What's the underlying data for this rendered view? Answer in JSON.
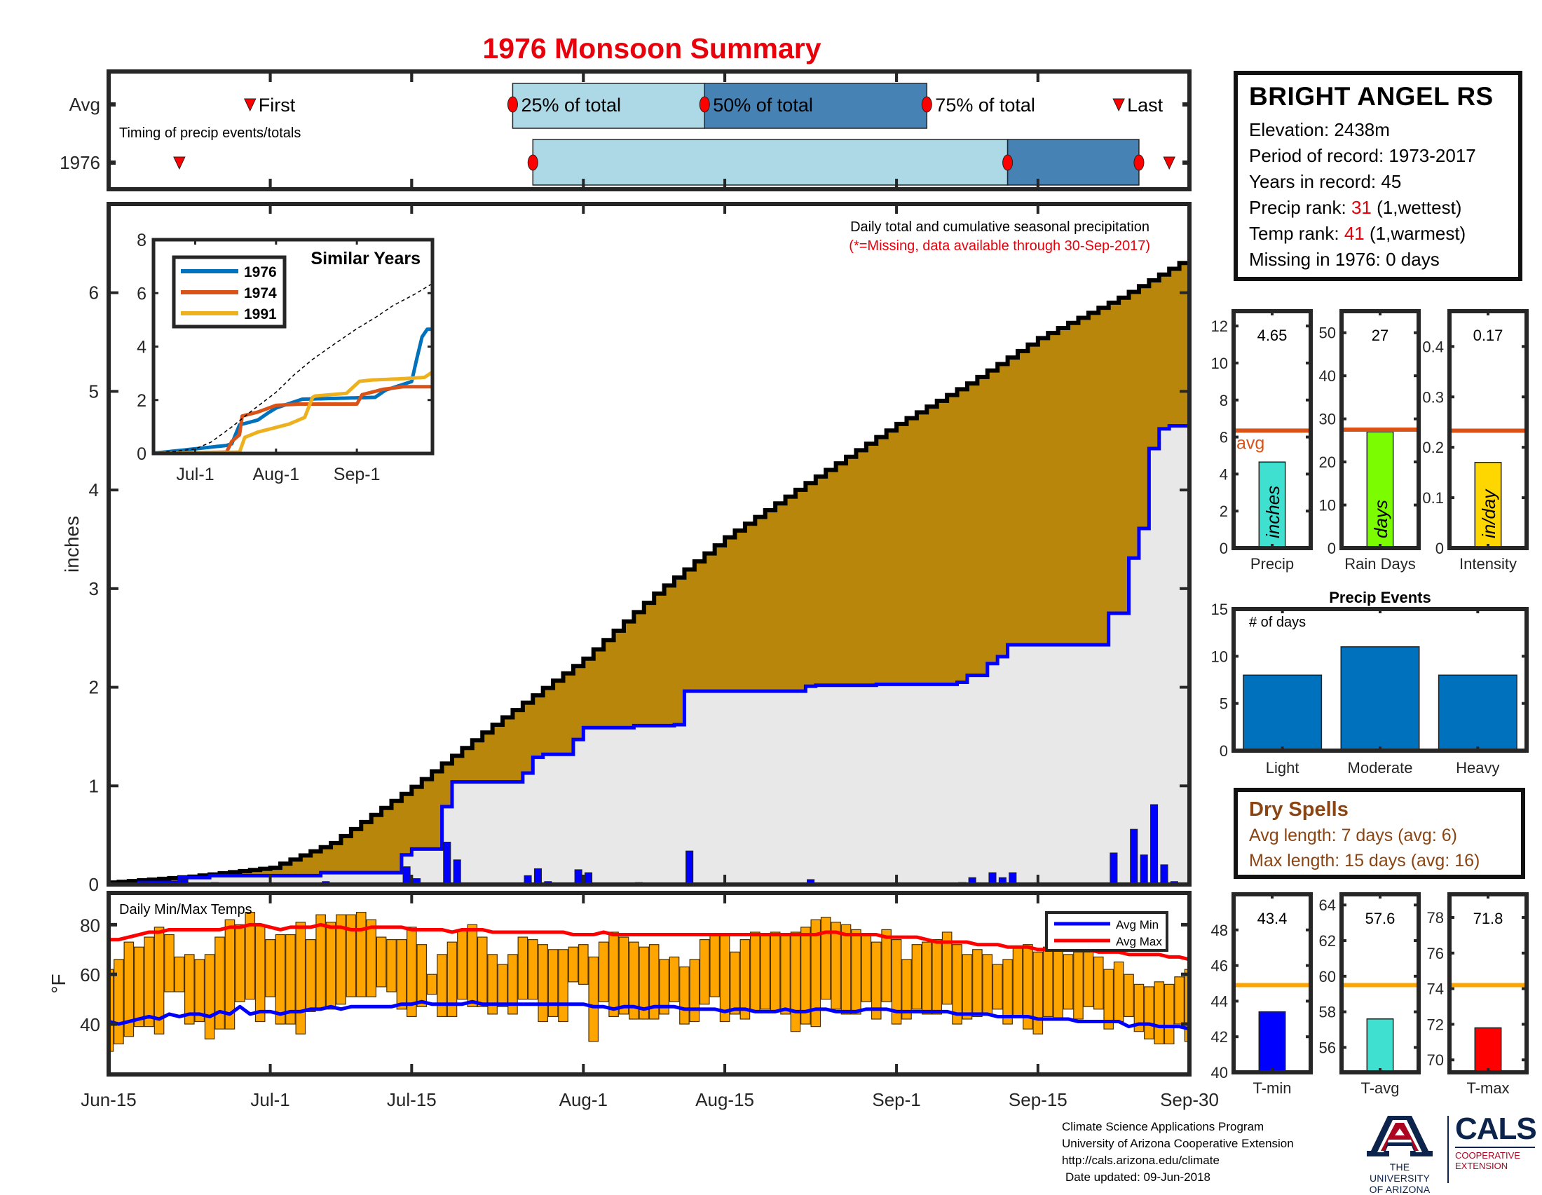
{
  "title": "1976 Monsoon Summary",
  "colors": {
    "title": "#e8000b",
    "avg_cumulative_fill": "#b8860b",
    "year_cumulative_fill": "#e8e8e8",
    "year_line": "#0000ff",
    "daily_bar": "#0000ff",
    "temp_bar": "#ffa500",
    "avg_min_line": "#0000ff",
    "avg_max_line": "#ff0000",
    "light_blue": "#add8e6",
    "steel_blue": "#4682b4",
    "marker": "#ff0000",
    "avg_ref_line_precip": "#d95319",
    "avg_ref_line_temp": "#ffa500",
    "dry_spells": "#8b4513"
  },
  "timing_panel": {
    "row_labels": [
      "Avg",
      "1976"
    ],
    "subtitle": "Timing of precip events/totals",
    "avg_labels": {
      "first": "First",
      "p25": "25% of total",
      "p50": "50% of total",
      "p75": "75% of total",
      "last": "Last"
    },
    "avg_days": {
      "first": 14,
      "p25": 40,
      "p50": 59,
      "p75": 81,
      "last": 100
    },
    "year_days": {
      "first": 7,
      "p25": 42,
      "p50": 89,
      "p75": 102,
      "last": 105
    }
  },
  "station": {
    "name": "BRIGHT ANGEL RS",
    "elevation": "Elevation: 2438m",
    "period": "Period of record: 1973-2017",
    "years": "Years in record: 45",
    "precip_rank_label": "Precip rank: ",
    "precip_rank_value": "31",
    "precip_rank_note": " (1,wettest)",
    "temp_rank_label": "Temp rank: ",
    "temp_rank_value": "41",
    "temp_rank_note": " (1,warmest)",
    "missing": "Missing in 1976: 0 days"
  },
  "dry_spells": {
    "title": "Dry Spells",
    "avg_length": "Avg length: 7 days (avg: 6)",
    "max_length": "Max length: 15 days (avg: 16)"
  },
  "footer": {
    "lines": [
      "Climate Science Applications Program",
      "University of Arizona Cooperative Extension",
      "http://cals.arizona.edu/climate",
      "Date updated: 09-Jun-2018"
    ],
    "logo_ua": [
      "THE UNIVERSITY",
      "OF ARIZONA"
    ],
    "logo_cals": "CALS",
    "logo_cals_sub": [
      "COOPERATIVE",
      "EXTENSION"
    ]
  },
  "x_axis": {
    "start": "Jun-15",
    "days": 107,
    "ticks": [
      {
        "day": 0,
        "label": "Jun-15"
      },
      {
        "day": 16,
        "label": "Jul-1"
      },
      {
        "day": 30,
        "label": "Jul-15"
      },
      {
        "day": 47,
        "label": "Aug-1"
      },
      {
        "day": 61,
        "label": "Aug-15"
      },
      {
        "day": 78,
        "label": "Sep-1"
      },
      {
        "day": 92,
        "label": "Sep-15"
      },
      {
        "day": 107,
        "label": "Sep-30"
      }
    ]
  },
  "chart_data": [
    {
      "id": "main_precip",
      "type": "area",
      "title": "Daily total and cumulative seasonal precipitation",
      "subtitle": "(*=Missing, data available through 30-Sep-2017)",
      "ylabel": "inches",
      "ylim": [
        0,
        6.9
      ],
      "yticks": [
        0,
        1,
        2,
        3,
        4,
        5,
        6
      ],
      "avg_cumulative_keypoints": {
        "day": [
          0,
          8,
          16,
          22,
          30,
          38,
          47,
          54,
          61,
          69,
          78,
          85,
          92,
          100,
          107
        ],
        "value": [
          0.02,
          0.08,
          0.17,
          0.42,
          0.99,
          1.62,
          2.29,
          2.95,
          3.52,
          4.07,
          4.67,
          5.08,
          5.54,
          5.95,
          6.36
        ]
      },
      "daily_precip_1976": {
        "day": [
          3,
          7,
          10,
          21,
          29,
          30,
          33,
          34,
          41,
          42,
          43,
          46,
          47,
          52,
          56,
          57,
          69,
          70,
          76,
          84,
          85,
          87,
          88,
          89,
          99,
          101,
          102,
          103,
          104,
          105
        ],
        "value": [
          0.02,
          0.05,
          0.02,
          0.03,
          0.18,
          0.06,
          0.43,
          0.25,
          0.09,
          0.16,
          0.03,
          0.15,
          0.12,
          0.02,
          0.01,
          0.34,
          0.05,
          0.01,
          0.01,
          0.02,
          0.07,
          0.12,
          0.07,
          0.12,
          0.32,
          0.56,
          0.3,
          0.81,
          0.2,
          0.03
        ]
      }
    },
    {
      "id": "similar_years",
      "type": "line",
      "title": "Similar Years",
      "ylim": [
        0,
        8
      ],
      "yticks": [
        0,
        2,
        4,
        6,
        8
      ],
      "xticks": [
        {
          "day": 16,
          "label": "Jul-1"
        },
        {
          "day": 47,
          "label": "Aug-1"
        },
        {
          "day": 78,
          "label": "Sep-1"
        }
      ],
      "series": [
        {
          "name": "1976",
          "color": "#0072bd",
          "day": [
            0,
            5,
            28,
            30,
            33,
            40,
            44,
            47,
            57,
            85,
            89,
            99,
            101,
            103,
            105,
            107
          ],
          "value": [
            0.01,
            0.06,
            0.3,
            0.36,
            1.07,
            1.25,
            1.52,
            1.7,
            2.03,
            2.1,
            2.37,
            2.69,
            3.55,
            4.36,
            4.65,
            4.65
          ]
        },
        {
          "name": "1974",
          "color": "#d95319",
          "day": [
            0,
            28,
            30,
            33,
            34,
            40,
            47,
            56,
            78,
            80,
            84,
            88,
            96,
            107
          ],
          "value": [
            0.0,
            0.05,
            0.45,
            0.7,
            1.4,
            1.55,
            1.8,
            1.85,
            1.85,
            2.2,
            2.3,
            2.4,
            2.5,
            2.5
          ]
        },
        {
          "name": "1991",
          "color": "#edb120",
          "day": [
            0,
            33,
            35,
            40,
            46,
            52,
            58,
            61,
            62,
            74,
            79,
            84,
            96,
            104,
            107
          ],
          "value": [
            0.0,
            0.05,
            0.6,
            0.8,
            0.95,
            1.1,
            1.35,
            2.1,
            2.15,
            2.25,
            2.7,
            2.75,
            2.8,
            2.85,
            3.05
          ]
        },
        {
          "name": "avg",
          "color": "#000000",
          "day": [
            0,
            16,
            30,
            47,
            61,
            78,
            92,
            107
          ],
          "value": [
            0.02,
            0.17,
            0.99,
            2.29,
            3.52,
            4.67,
            5.54,
            6.36
          ]
        }
      ]
    },
    {
      "id": "temps",
      "type": "bar",
      "title": "Daily Min/Max Temps",
      "ylabel": "°F",
      "ylim": [
        19.7,
        92.8
      ],
      "yticks": [
        40,
        60,
        80
      ],
      "legend": [
        "Avg Min",
        "Avg Max"
      ],
      "legend_position": "top-right",
      "daily_max": [
        62,
        66,
        73,
        71,
        75,
        79,
        76,
        67,
        68,
        66,
        68,
        75,
        82,
        80,
        85,
        80,
        74,
        76,
        76,
        81,
        74,
        84,
        81,
        84,
        84,
        85,
        82,
        75,
        74,
        74,
        79,
        72,
        60,
        68,
        73,
        78,
        80,
        75,
        68,
        64,
        68,
        75,
        74,
        72,
        70,
        70,
        71,
        72,
        67,
        73,
        77,
        75,
        73,
        71,
        72,
        66,
        67,
        63,
        66,
        74,
        76,
        76,
        69,
        74,
        77,
        76,
        77,
        76,
        77,
        79,
        82,
        83,
        81,
        80,
        78,
        76,
        73,
        78,
        74,
        66,
        72,
        73,
        74,
        77,
        72,
        68,
        70,
        68,
        64,
        66,
        71,
        72,
        69,
        71,
        71,
        68,
        69,
        69,
        67,
        62,
        65,
        60,
        56,
        55,
        57,
        56,
        59,
        62
      ],
      "daily_min": [
        29,
        32,
        35,
        39,
        39,
        36,
        53,
        53,
        40,
        41,
        34,
        38,
        38,
        49,
        50,
        41,
        51,
        40,
        40,
        36,
        45,
        46,
        46,
        48,
        51,
        51,
        51,
        55,
        53,
        46,
        43,
        47,
        52,
        43,
        43,
        50,
        47,
        47,
        44,
        47,
        44,
        50,
        50,
        41,
        43,
        41,
        57,
        56,
        33,
        49,
        43,
        44,
        42,
        42,
        42,
        44,
        49,
        40,
        41,
        48,
        51,
        41,
        44,
        42,
        45,
        46,
        45,
        44,
        37,
        40,
        39,
        50,
        46,
        44,
        44,
        49,
        42,
        49,
        40,
        42,
        46,
        44,
        44,
        48,
        40,
        42,
        43,
        44,
        46,
        40,
        43,
        38,
        36,
        43,
        42,
        46,
        42,
        47,
        46,
        38,
        41,
        43,
        37,
        34,
        32,
        32,
        40,
        33
      ],
      "avg_min": [
        41,
        40,
        41,
        42,
        43,
        42,
        44,
        43,
        44,
        44,
        43,
        45,
        44,
        47,
        44,
        45,
        45,
        44,
        45,
        45,
        46,
        46,
        47,
        46,
        47,
        47,
        47,
        47,
        47,
        48,
        48,
        49,
        48,
        48,
        48,
        48,
        49,
        48,
        48,
        48,
        48,
        48,
        48,
        48,
        48,
        48,
        48,
        48,
        47,
        47,
        46,
        47,
        47,
        46,
        47,
        47,
        47,
        46,
        46,
        46,
        46,
        45,
        46,
        46,
        45,
        45,
        45,
        46,
        45,
        45,
        46,
        46,
        45,
        45,
        45,
        46,
        46,
        46,
        45,
        45,
        45,
        45,
        45,
        45,
        44,
        44,
        44,
        44,
        43,
        43,
        43,
        43,
        42,
        42,
        42,
        42,
        41,
        41,
        41,
        41,
        41,
        39,
        40,
        40,
        39,
        39,
        39,
        38
      ],
      "avg_max": [
        74,
        74,
        75,
        76,
        77,
        77,
        78,
        78,
        78,
        78,
        78,
        78,
        79,
        79,
        80,
        80,
        79,
        78,
        79,
        79,
        79,
        80,
        79,
        79,
        78,
        78,
        79,
        79,
        79,
        79,
        78,
        78,
        78,
        78,
        77,
        78,
        78,
        78,
        77,
        77,
        77,
        77,
        77,
        77,
        77,
        77,
        76,
        76,
        76,
        77,
        76,
        76,
        76,
        76,
        76,
        76,
        76,
        76,
        76,
        76,
        76,
        76,
        76,
        76,
        76,
        76,
        76,
        76,
        76,
        76,
        76,
        77,
        77,
        76,
        76,
        76,
        76,
        75,
        75,
        75,
        75,
        74,
        73,
        73,
        73,
        73,
        72,
        72,
        72,
        71,
        71,
        71,
        70,
        70,
        70,
        70,
        70,
        70,
        69,
        69,
        69,
        68,
        68,
        68,
        68,
        67,
        67,
        66
      ]
    },
    {
      "id": "precip_total",
      "type": "bar",
      "category": "Precip",
      "value": 4.65,
      "value_label": "4.65",
      "unit_label": "inches",
      "avg": 6.35,
      "avg_label": "avg",
      "ylim": [
        0,
        12.8
      ],
      "yticks": [
        0,
        2,
        4,
        6,
        8,
        10,
        12
      ],
      "color": "#40e0d0"
    },
    {
      "id": "rain_days",
      "type": "bar",
      "category": "Rain Days",
      "value": 27,
      "value_label": "27",
      "unit_label": "days",
      "avg": 27.5,
      "ylim": [
        0,
        55
      ],
      "yticks": [
        0,
        10,
        20,
        30,
        40,
        50
      ],
      "color": "#7cfc00"
    },
    {
      "id": "intensity",
      "type": "bar",
      "category": "Intensity",
      "value": 0.17,
      "value_label": "0.17",
      "unit_label": "in/day",
      "avg": 0.233,
      "ylim": [
        0,
        0.47
      ],
      "yticks": [
        0,
        0.1,
        0.2,
        0.3,
        0.4
      ],
      "ytick_labels": [
        "0",
        "0.1",
        "0.2",
        "0.3",
        "0.4"
      ],
      "color": "#ffd700"
    },
    {
      "id": "precip_events",
      "type": "bar",
      "title": "Precip Events",
      "annotation": "# of days",
      "categories": [
        "Light",
        "Moderate",
        "Heavy"
      ],
      "values": [
        8,
        11,
        8
      ],
      "ylim": [
        0,
        15
      ],
      "yticks": [
        0,
        5,
        10,
        15
      ],
      "color": "#0072bd"
    },
    {
      "id": "t_min",
      "type": "bar",
      "category": "T-min",
      "value": 43.4,
      "value_label": "43.4",
      "avg": 44.9,
      "ylim": [
        40,
        50
      ],
      "yticks": [
        40,
        42,
        44,
        46,
        48
      ],
      "color": "#0000ff"
    },
    {
      "id": "t_avg",
      "type": "bar",
      "category": "T-avg",
      "value": 57.6,
      "value_label": "57.6",
      "avg": 59.5,
      "ylim": [
        54.6,
        64.6
      ],
      "yticks": [
        56,
        58,
        60,
        62,
        64
      ],
      "color": "#40e0d0"
    },
    {
      "id": "t_max",
      "type": "bar",
      "category": "T-max",
      "value": 71.8,
      "value_label": "71.8",
      "avg": 74.2,
      "ylim": [
        69.3,
        79.3
      ],
      "yticks": [
        70,
        72,
        74,
        76,
        78
      ],
      "color": "#ff0000"
    }
  ]
}
